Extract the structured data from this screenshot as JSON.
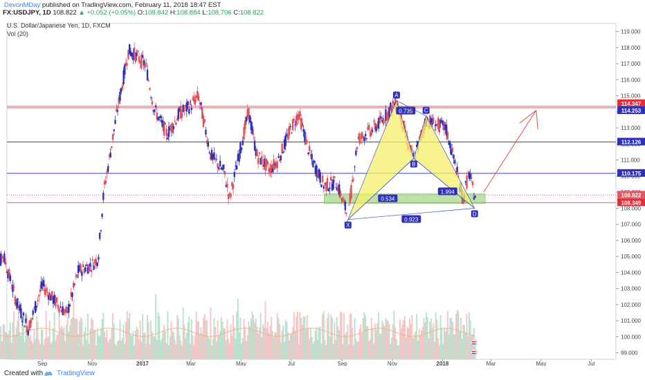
{
  "header": {
    "user": "DevonMDay",
    "published_text": "published on TradingView.com, February 11, 2018 18:47 EST",
    "symbol": "FX:USDJPY, 1D",
    "last": "108.822",
    "change": "▲ +0.052 (+0.05%)",
    "o_label": "O:",
    "o_value": "108.842",
    "h_label": "H:",
    "h_value": "108.884",
    "l_label": "L:",
    "l_value": "108.706",
    "c_label": "C:",
    "c_value": "108.822"
  },
  "legend": {
    "instrument": "U.S. Dollar/Japanese Yen, 1D, FXCM",
    "volume": "Vol (20)"
  },
  "footer": {
    "created_with": "Created with",
    "brand": "TradingView"
  },
  "colors": {
    "candle_up": "#2e31b8",
    "candle_down": "#e0505a",
    "resistance": "#e05a66",
    "support": "#3b3fc4",
    "pattern_fill": "#f5f06a",
    "zone_fill": "#8fcf6f",
    "price_tag": "#e0303a",
    "level_tag": "#2e31b8"
  },
  "chart_data": {
    "type": "candlestick",
    "x_ticks": [
      "Sep",
      "Nov",
      "2017",
      "Mar",
      "May",
      "Jul",
      "Sep",
      "Nov",
      "2018",
      "Mar",
      "May",
      "Jul"
    ],
    "y_ticks": [
      "119.000",
      "118.000",
      "117.000",
      "116.000",
      "115.000",
      "114.000",
      "113.000",
      "112.000",
      "111.000",
      "110.000",
      "109.000",
      "108.000",
      "107.000",
      "106.000",
      "105.000",
      "104.000",
      "103.000",
      "102.000",
      "101.000",
      "100.000",
      "99.000"
    ],
    "ylim": [
      98.6,
      119.5
    ],
    "price_labels": [
      {
        "value": 114.347,
        "text": "114.347",
        "color": "#e0303a"
      },
      {
        "value": 114.253,
        "text": "114.253",
        "color": "#2e31b8"
      },
      {
        "value": 112.126,
        "text": "112.126",
        "color": "#2e31b8"
      },
      {
        "value": 110.175,
        "text": "110.175",
        "color": "#2e31b8"
      },
      {
        "value": 108.822,
        "text": "108.822",
        "color": "#e05a66"
      },
      {
        "value": 108.349,
        "text": "108.349",
        "color": "#e0303a"
      }
    ],
    "horizontal_levels": [
      114.347,
      114.253,
      112.126,
      110.175,
      108.349
    ],
    "pattern_points": [
      {
        "label": "X",
        "date": "2017-09-08",
        "value": 107.3
      },
      {
        "label": "A",
        "date": "2017-11-06",
        "value": 114.7
      },
      {
        "label": "B",
        "date": "2017-11-27",
        "value": 111.1
      },
      {
        "label": "C",
        "date": "2017-12-12",
        "value": 113.75
      },
      {
        "label": "D",
        "date": "2018-02-09",
        "value": 108.0
      }
    ],
    "ratios": [
      "0.735",
      "0.534",
      "1.994",
      "0.923"
    ],
    "series": [
      {
        "name": "USDJPY",
        "points": [
          [
            "2016-07-01",
            102.6
          ],
          [
            "2016-07-15",
            105.2
          ],
          [
            "2016-08-01",
            102.1
          ],
          [
            "2016-08-15",
            100.5
          ],
          [
            "2016-09-01",
            103.2
          ],
          [
            "2016-09-15",
            102.3
          ],
          [
            "2016-10-01",
            101.4
          ],
          [
            "2016-10-15",
            104.1
          ],
          [
            "2016-11-01",
            104.5
          ],
          [
            "2016-11-08",
            104.9
          ],
          [
            "2016-11-15",
            109.1
          ],
          [
            "2016-11-22",
            111.2
          ],
          [
            "2016-12-01",
            114.0
          ],
          [
            "2016-12-15",
            117.8
          ],
          [
            "2016-12-22",
            117.6
          ],
          [
            "2017-01-05",
            116.9
          ],
          [
            "2017-01-15",
            114.2
          ],
          [
            "2017-01-31",
            112.6
          ],
          [
            "2017-02-15",
            113.9
          ],
          [
            "2017-03-01",
            114.4
          ],
          [
            "2017-03-10",
            115.0
          ],
          [
            "2017-03-25",
            111.3
          ],
          [
            "2017-04-10",
            110.3
          ],
          [
            "2017-04-17",
            108.6
          ],
          [
            "2017-05-01",
            111.9
          ],
          [
            "2017-05-10",
            114.0
          ],
          [
            "2017-05-20",
            111.3
          ],
          [
            "2017-06-05",
            110.4
          ],
          [
            "2017-06-15",
            111.0
          ],
          [
            "2017-07-01",
            113.0
          ],
          [
            "2017-07-10",
            113.9
          ],
          [
            "2017-07-25",
            111.1
          ],
          [
            "2017-08-10",
            109.4
          ],
          [
            "2017-08-25",
            109.6
          ],
          [
            "2017-09-08",
            107.5
          ],
          [
            "2017-09-20",
            112.3
          ],
          [
            "2017-10-05",
            112.8
          ],
          [
            "2017-10-20",
            113.5
          ],
          [
            "2017-11-06",
            114.7
          ],
          [
            "2017-11-20",
            112.0
          ],
          [
            "2017-11-27",
            111.1
          ],
          [
            "2017-12-12",
            113.5
          ],
          [
            "2017-12-25",
            113.2
          ],
          [
            "2018-01-05",
            113.0
          ],
          [
            "2018-01-15",
            111.0
          ],
          [
            "2018-01-26",
            108.6
          ],
          [
            "2018-02-02",
            110.2
          ],
          [
            "2018-02-09",
            108.8
          ]
        ]
      }
    ],
    "volume_axis": "Vol (20)"
  }
}
